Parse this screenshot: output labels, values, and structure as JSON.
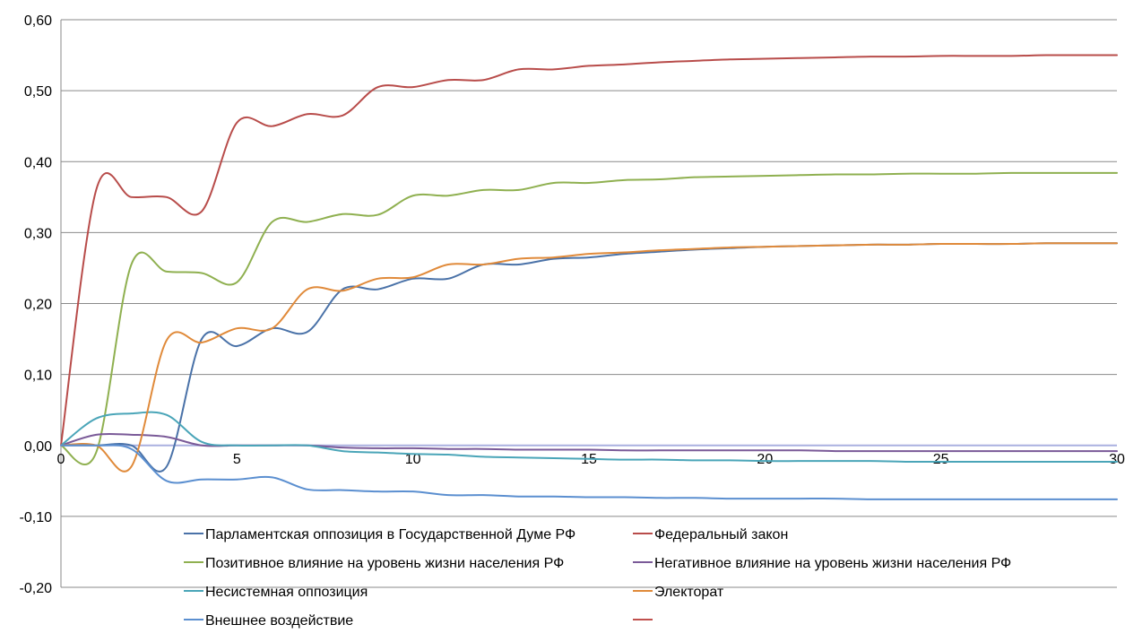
{
  "chart_data": {
    "type": "line",
    "title": "",
    "xlabel": "",
    "ylabel": "",
    "xlim": [
      0,
      30
    ],
    "ylim": [
      -0.2,
      0.6
    ],
    "x_ticks": [
      "0",
      "5",
      "10",
      "15",
      "20",
      "25",
      "30"
    ],
    "y_ticks": [
      "0,60",
      "0,50",
      "0,40",
      "0,30",
      "0,20",
      "0,10",
      "0,00",
      "-0,10",
      "-0,20"
    ],
    "grid": "horizontal",
    "legend_position": "bottom",
    "series": [
      {
        "name": "Парламентская оппозиция в Государственной Думе РФ",
        "color": "#4a72a8",
        "x": [
          0,
          1,
          2,
          3,
          4,
          5,
          6,
          7,
          8,
          9,
          10,
          11,
          12,
          13,
          14,
          15,
          16,
          17,
          18,
          19,
          20,
          21,
          22,
          23,
          24,
          25,
          26,
          27,
          28,
          29,
          30
        ],
        "y": [
          0,
          0,
          0,
          -0.03,
          0.15,
          0.14,
          0.165,
          0.16,
          0.22,
          0.22,
          0.235,
          0.235,
          0.255,
          0.255,
          0.263,
          0.265,
          0.27,
          0.273,
          0.276,
          0.278,
          0.28,
          0.281,
          0.282,
          0.283,
          0.283,
          0.284,
          0.284,
          0.284,
          0.285,
          0.285,
          0.285
        ]
      },
      {
        "name": "Федеральный закон",
        "color": "#b84c4a",
        "x": [
          0,
          1,
          2,
          3,
          4,
          5,
          6,
          7,
          8,
          9,
          10,
          11,
          12,
          13,
          14,
          15,
          16,
          17,
          18,
          19,
          20,
          21,
          22,
          23,
          24,
          25,
          26,
          27,
          28,
          29,
          30
        ],
        "y": [
          0,
          0.36,
          0.35,
          0.35,
          0.33,
          0.455,
          0.45,
          0.467,
          0.465,
          0.505,
          0.505,
          0.515,
          0.515,
          0.53,
          0.53,
          0.535,
          0.537,
          0.54,
          0.542,
          0.544,
          0.545,
          0.546,
          0.547,
          0.548,
          0.548,
          0.549,
          0.549,
          0.549,
          0.55,
          0.55,
          0.55
        ]
      },
      {
        "name": "Позитивное влияние на уровень жизни населения РФ",
        "color": "#8fb050",
        "x": [
          0,
          1,
          2,
          3,
          4,
          5,
          6,
          7,
          8,
          9,
          10,
          11,
          12,
          13,
          14,
          15,
          16,
          17,
          18,
          19,
          20,
          21,
          22,
          23,
          24,
          25,
          26,
          27,
          28,
          29,
          30
        ],
        "y": [
          0,
          -0.01,
          0.255,
          0.245,
          0.243,
          0.23,
          0.315,
          0.315,
          0.326,
          0.325,
          0.352,
          0.352,
          0.36,
          0.36,
          0.37,
          0.37,
          0.374,
          0.375,
          0.378,
          0.379,
          0.38,
          0.381,
          0.382,
          0.382,
          0.383,
          0.383,
          0.383,
          0.384,
          0.384,
          0.384,
          0.384
        ]
      },
      {
        "name": "Негативное влияние на уровень жизни населения РФ",
        "color": "#7a5a98",
        "x": [
          0,
          1,
          2,
          3,
          4,
          5,
          6,
          7,
          8,
          9,
          10,
          11,
          12,
          13,
          14,
          15,
          16,
          17,
          18,
          19,
          20,
          21,
          22,
          23,
          24,
          25,
          26,
          27,
          28,
          29,
          30
        ],
        "y": [
          0,
          0.015,
          0.015,
          0.012,
          0,
          0,
          0,
          0,
          -0.003,
          -0.004,
          -0.004,
          -0.005,
          -0.005,
          -0.006,
          -0.006,
          -0.006,
          -0.007,
          -0.007,
          -0.007,
          -0.007,
          -0.007,
          -0.007,
          -0.008,
          -0.008,
          -0.008,
          -0.008,
          -0.008,
          -0.008,
          -0.008,
          -0.008,
          -0.008
        ]
      },
      {
        "name": "Несистемная оппозиция",
        "color": "#4aa5b8",
        "x": [
          0,
          1,
          2,
          3,
          4,
          5,
          6,
          7,
          8,
          9,
          10,
          11,
          12,
          13,
          14,
          15,
          16,
          17,
          18,
          19,
          20,
          21,
          22,
          23,
          24,
          25,
          26,
          27,
          28,
          29,
          30
        ],
        "y": [
          0,
          0.038,
          0.045,
          0.043,
          0.005,
          0,
          0,
          0,
          -0.008,
          -0.01,
          -0.012,
          -0.013,
          -0.016,
          -0.017,
          -0.018,
          -0.019,
          -0.02,
          -0.02,
          -0.021,
          -0.021,
          -0.022,
          -0.022,
          -0.022,
          -0.022,
          -0.023,
          -0.023,
          -0.023,
          -0.023,
          -0.023,
          -0.023,
          -0.023
        ]
      },
      {
        "name": "Электорат",
        "color": "#e08a3a",
        "x": [
          0,
          1,
          2,
          3,
          4,
          5,
          6,
          7,
          8,
          9,
          10,
          11,
          12,
          13,
          14,
          15,
          16,
          17,
          18,
          19,
          20,
          21,
          22,
          23,
          24,
          25,
          26,
          27,
          28,
          29,
          30
        ],
        "y": [
          0,
          0,
          -0.03,
          0.148,
          0.145,
          0.165,
          0.165,
          0.22,
          0.218,
          0.235,
          0.237,
          0.255,
          0.255,
          0.263,
          0.265,
          0.27,
          0.272,
          0.275,
          0.277,
          0.279,
          0.28,
          0.281,
          0.282,
          0.283,
          0.283,
          0.284,
          0.284,
          0.284,
          0.285,
          0.285,
          0.285
        ]
      },
      {
        "name": "Внешнее воздействие",
        "color": "#5b8fd0",
        "x": [
          0,
          1,
          2,
          3,
          4,
          5,
          6,
          7,
          8,
          9,
          10,
          11,
          12,
          13,
          14,
          15,
          16,
          17,
          18,
          19,
          20,
          21,
          22,
          23,
          24,
          25,
          26,
          27,
          28,
          29,
          30
        ],
        "y": [
          0,
          0,
          -0.005,
          -0.05,
          -0.048,
          -0.048,
          -0.045,
          -0.062,
          -0.063,
          -0.065,
          -0.065,
          -0.07,
          -0.07,
          -0.072,
          -0.072,
          -0.073,
          -0.073,
          -0.074,
          -0.074,
          -0.075,
          -0.075,
          -0.075,
          -0.075,
          -0.076,
          -0.076,
          -0.076,
          -0.076,
          -0.076,
          -0.076,
          -0.076,
          -0.076
        ]
      },
      {
        "name": "",
        "color": "#c0504d",
        "x": [
          0,
          30
        ],
        "y": [
          0,
          0
        ]
      },
      {
        "name": "",
        "color": "#9bbb59",
        "x": [
          0,
          30
        ],
        "y": [
          0,
          0
        ]
      },
      {
        "name": "",
        "color": "#8064a2",
        "x": [
          0,
          30
        ],
        "y": [
          0,
          0
        ]
      }
    ]
  },
  "legend": {
    "entries": [
      {
        "label": "Парламентская оппозиция в Государственной Думе РФ",
        "color": "#4a72a8"
      },
      {
        "label": "Федеральный закон",
        "color": "#b84c4a"
      },
      {
        "label": "Позитивное влияние на уровень жизни населения РФ",
        "color": "#8fb050"
      },
      {
        "label": "Негативное влияние на уровень жизни населения РФ",
        "color": "#7a5a98"
      },
      {
        "label": "Несистемная оппозиция",
        "color": "#4aa5b8"
      },
      {
        "label": "Электорат",
        "color": "#e08a3a"
      },
      {
        "label": "Внешнее воздействие",
        "color": "#5b8fd0"
      },
      {
        "label": "",
        "color": "#c0504d"
      },
      {
        "label": "",
        "color": "#9bbb59"
      },
      {
        "label": "",
        "color": "#8064a2"
      }
    ]
  },
  "zero_line_color": "#aab0e0",
  "grid_color": "#8a8a8a"
}
